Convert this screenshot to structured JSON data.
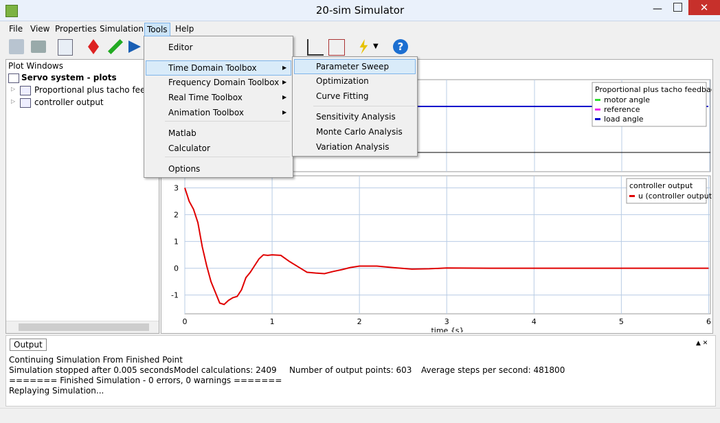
{
  "window": {
    "title": "20-sim Simulator"
  },
  "menubar": [
    "File",
    "View",
    "Properties",
    "Simulation",
    "Tools",
    "Help"
  ],
  "tools_menu": [
    "Editor",
    "Time Domain Toolbox",
    "Frequency Domain Toolbox",
    "Real Time Toolbox",
    "Animation Toolbox",
    "Matlab",
    "Calculator",
    "Options"
  ],
  "submenu": [
    "Parameter Sweep",
    "Optimization",
    "Curve Fitting",
    "Sensitivity Analysis",
    "Monte Carlo Analysis",
    "Variation Analysis"
  ],
  "tree": {
    "header": "Plot Windows",
    "root": "Servo system - plots",
    "children": [
      "Proportional plus tacho feedback",
      "controller output"
    ]
  },
  "plot1": {
    "legend_title": "Proportional plus tacho feedback",
    "series": [
      {
        "name": "motor angle",
        "color": "#33dd33"
      },
      {
        "name": "reference",
        "color": "#ee22ee"
      },
      {
        "name": "load angle",
        "color": "#0000cc"
      }
    ]
  },
  "chart_data": {
    "type": "line",
    "legend_title": "controller output",
    "xlabel": "time {s}",
    "x": [
      0,
      0.05,
      0.1,
      0.15,
      0.2,
      0.25,
      0.3,
      0.35,
      0.4,
      0.45,
      0.5,
      0.55,
      0.6,
      0.65,
      0.7,
      0.75,
      0.8,
      0.85,
      0.9,
      0.95,
      1.0,
      1.1,
      1.2,
      1.3,
      1.4,
      1.5,
      1.6,
      1.7,
      1.8,
      1.9,
      2.0,
      2.2,
      2.4,
      2.6,
      2.8,
      3.0,
      3.5,
      4.0,
      5.0,
      6.0
    ],
    "series": [
      {
        "name": "u (controller output)",
        "color": "#e00000",
        "values": [
          3,
          2.5,
          2.2,
          1.7,
          0.8,
          0.1,
          -0.5,
          -0.9,
          -1.3,
          -1.35,
          -1.2,
          -1.1,
          -1.05,
          -0.8,
          -0.35,
          -0.15,
          0.1,
          0.35,
          0.5,
          0.48,
          0.5,
          0.48,
          0.25,
          0.05,
          -0.15,
          -0.18,
          -0.2,
          -0.12,
          -0.05,
          0.03,
          0.08,
          0.08,
          0.02,
          -0.03,
          -0.02,
          0.01,
          0,
          0,
          0,
          0
        ]
      }
    ],
    "xlim": [
      0,
      6.02
    ],
    "ylim": [
      -1.7,
      3.45
    ],
    "xticks": [
      0,
      1,
      2,
      3,
      4,
      5,
      6
    ],
    "yticks": [
      -1,
      0,
      1,
      2,
      3
    ],
    "grid": true
  },
  "output": {
    "tab": "Output",
    "lines": [
      [
        "Continuing Simulation From Finished Point"
      ],
      [
        "Simulation stopped after 0.005 seconds.",
        "Model calculations: 2409",
        "Number of output points: 603",
        "Average steps per second: 481800"
      ],
      [
        "======= Finished Simulation - 0 errors, 0 warnings ======="
      ],
      [
        "Replaying Simulation..."
      ]
    ]
  }
}
